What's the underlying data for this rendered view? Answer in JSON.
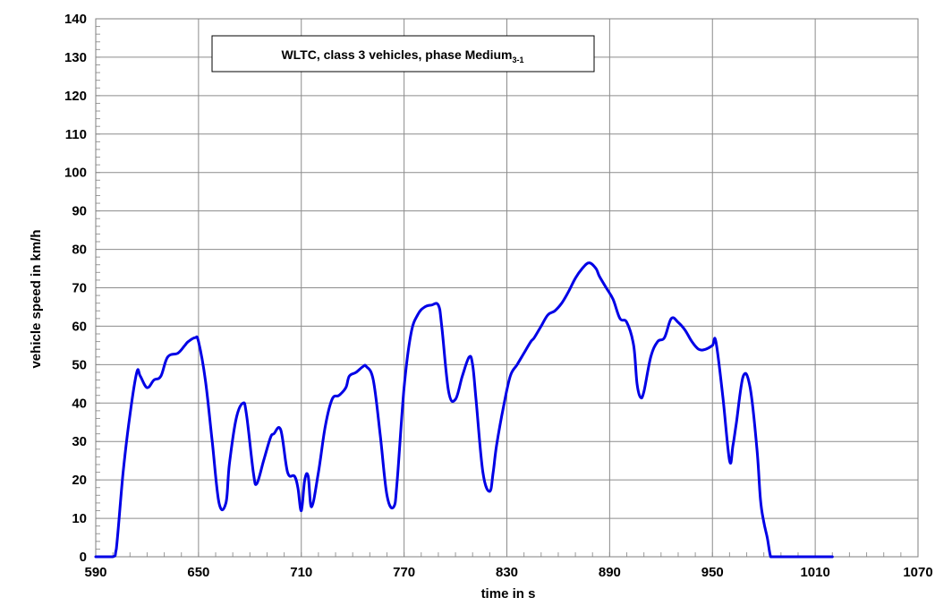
{
  "chart_data": {
    "type": "line",
    "title": "WLTC, class 3 vehicles, phase Medium",
    "title_subscript": "3-1",
    "xlabel": "time in s",
    "ylabel": "vehicle speed in km/h",
    "xlim": [
      590,
      1070
    ],
    "ylim": [
      0,
      140
    ],
    "x_ticks": [
      590,
      650,
      710,
      770,
      830,
      890,
      950,
      1010,
      1070
    ],
    "y_ticks": [
      0,
      10,
      20,
      30,
      40,
      50,
      60,
      70,
      80,
      90,
      100,
      110,
      120,
      130,
      140
    ],
    "grid": true,
    "legend": "none",
    "series": [
      {
        "color": "#0000e6",
        "x": [
          590,
          600,
          602,
          606,
          610,
          614,
          616,
          620,
          624,
          628,
          632,
          638,
          642,
          644,
          648,
          650,
          654,
          658,
          662,
          666,
          668,
          672,
          676,
          678,
          682,
          684,
          688,
          692,
          694,
          698,
          702,
          706,
          708,
          710,
          712,
          714,
          716,
          720,
          724,
          728,
          732,
          736,
          738,
          742,
          746,
          748,
          752,
          756,
          760,
          764,
          766,
          770,
          774,
          778,
          782,
          786,
          790,
          792,
          796,
          800,
          804,
          808,
          810,
          812,
          816,
          820,
          822,
          824,
          828,
          832,
          836,
          840,
          844,
          846,
          850,
          854,
          858,
          862,
          866,
          870,
          874,
          878,
          882,
          884,
          888,
          892,
          896,
          900,
          904,
          906,
          908,
          910,
          914,
          918,
          922,
          926,
          930,
          934,
          938,
          942,
          946,
          950,
          952,
          956,
          960,
          962,
          964,
          968,
          972,
          976,
          978,
          980,
          982,
          984,
          986,
          988,
          990,
          1020
        ],
        "values": [
          0,
          0,
          2,
          22,
          37,
          48,
          47,
          44,
          46,
          47,
          52,
          53,
          55,
          56,
          57,
          56,
          46,
          30,
          14,
          14,
          24,
          36,
          40,
          37,
          22,
          19,
          25,
          31,
          32,
          33,
          22,
          21,
          18,
          12,
          20,
          21,
          13,
          22,
          34,
          41,
          42,
          44,
          47,
          48,
          49.5,
          49.5,
          46,
          32,
          16,
          13,
          20,
          44,
          58,
          63,
          65,
          65.5,
          65.5,
          60,
          43,
          41,
          47,
          52,
          50,
          41,
          22,
          17,
          22,
          29,
          39,
          47,
          50,
          53,
          56,
          57,
          60,
          63,
          64,
          66,
          69,
          72.5,
          75,
          76.5,
          75,
          73,
          70,
          67,
          62,
          61,
          55,
          45,
          41.5,
          43,
          52,
          56,
          57,
          62,
          61,
          59,
          56,
          54,
          54,
          55,
          56,
          42,
          25,
          29,
          35,
          47,
          44,
          28,
          15,
          9,
          5,
          0,
          0,
          0,
          0,
          0
        ]
      }
    ]
  }
}
